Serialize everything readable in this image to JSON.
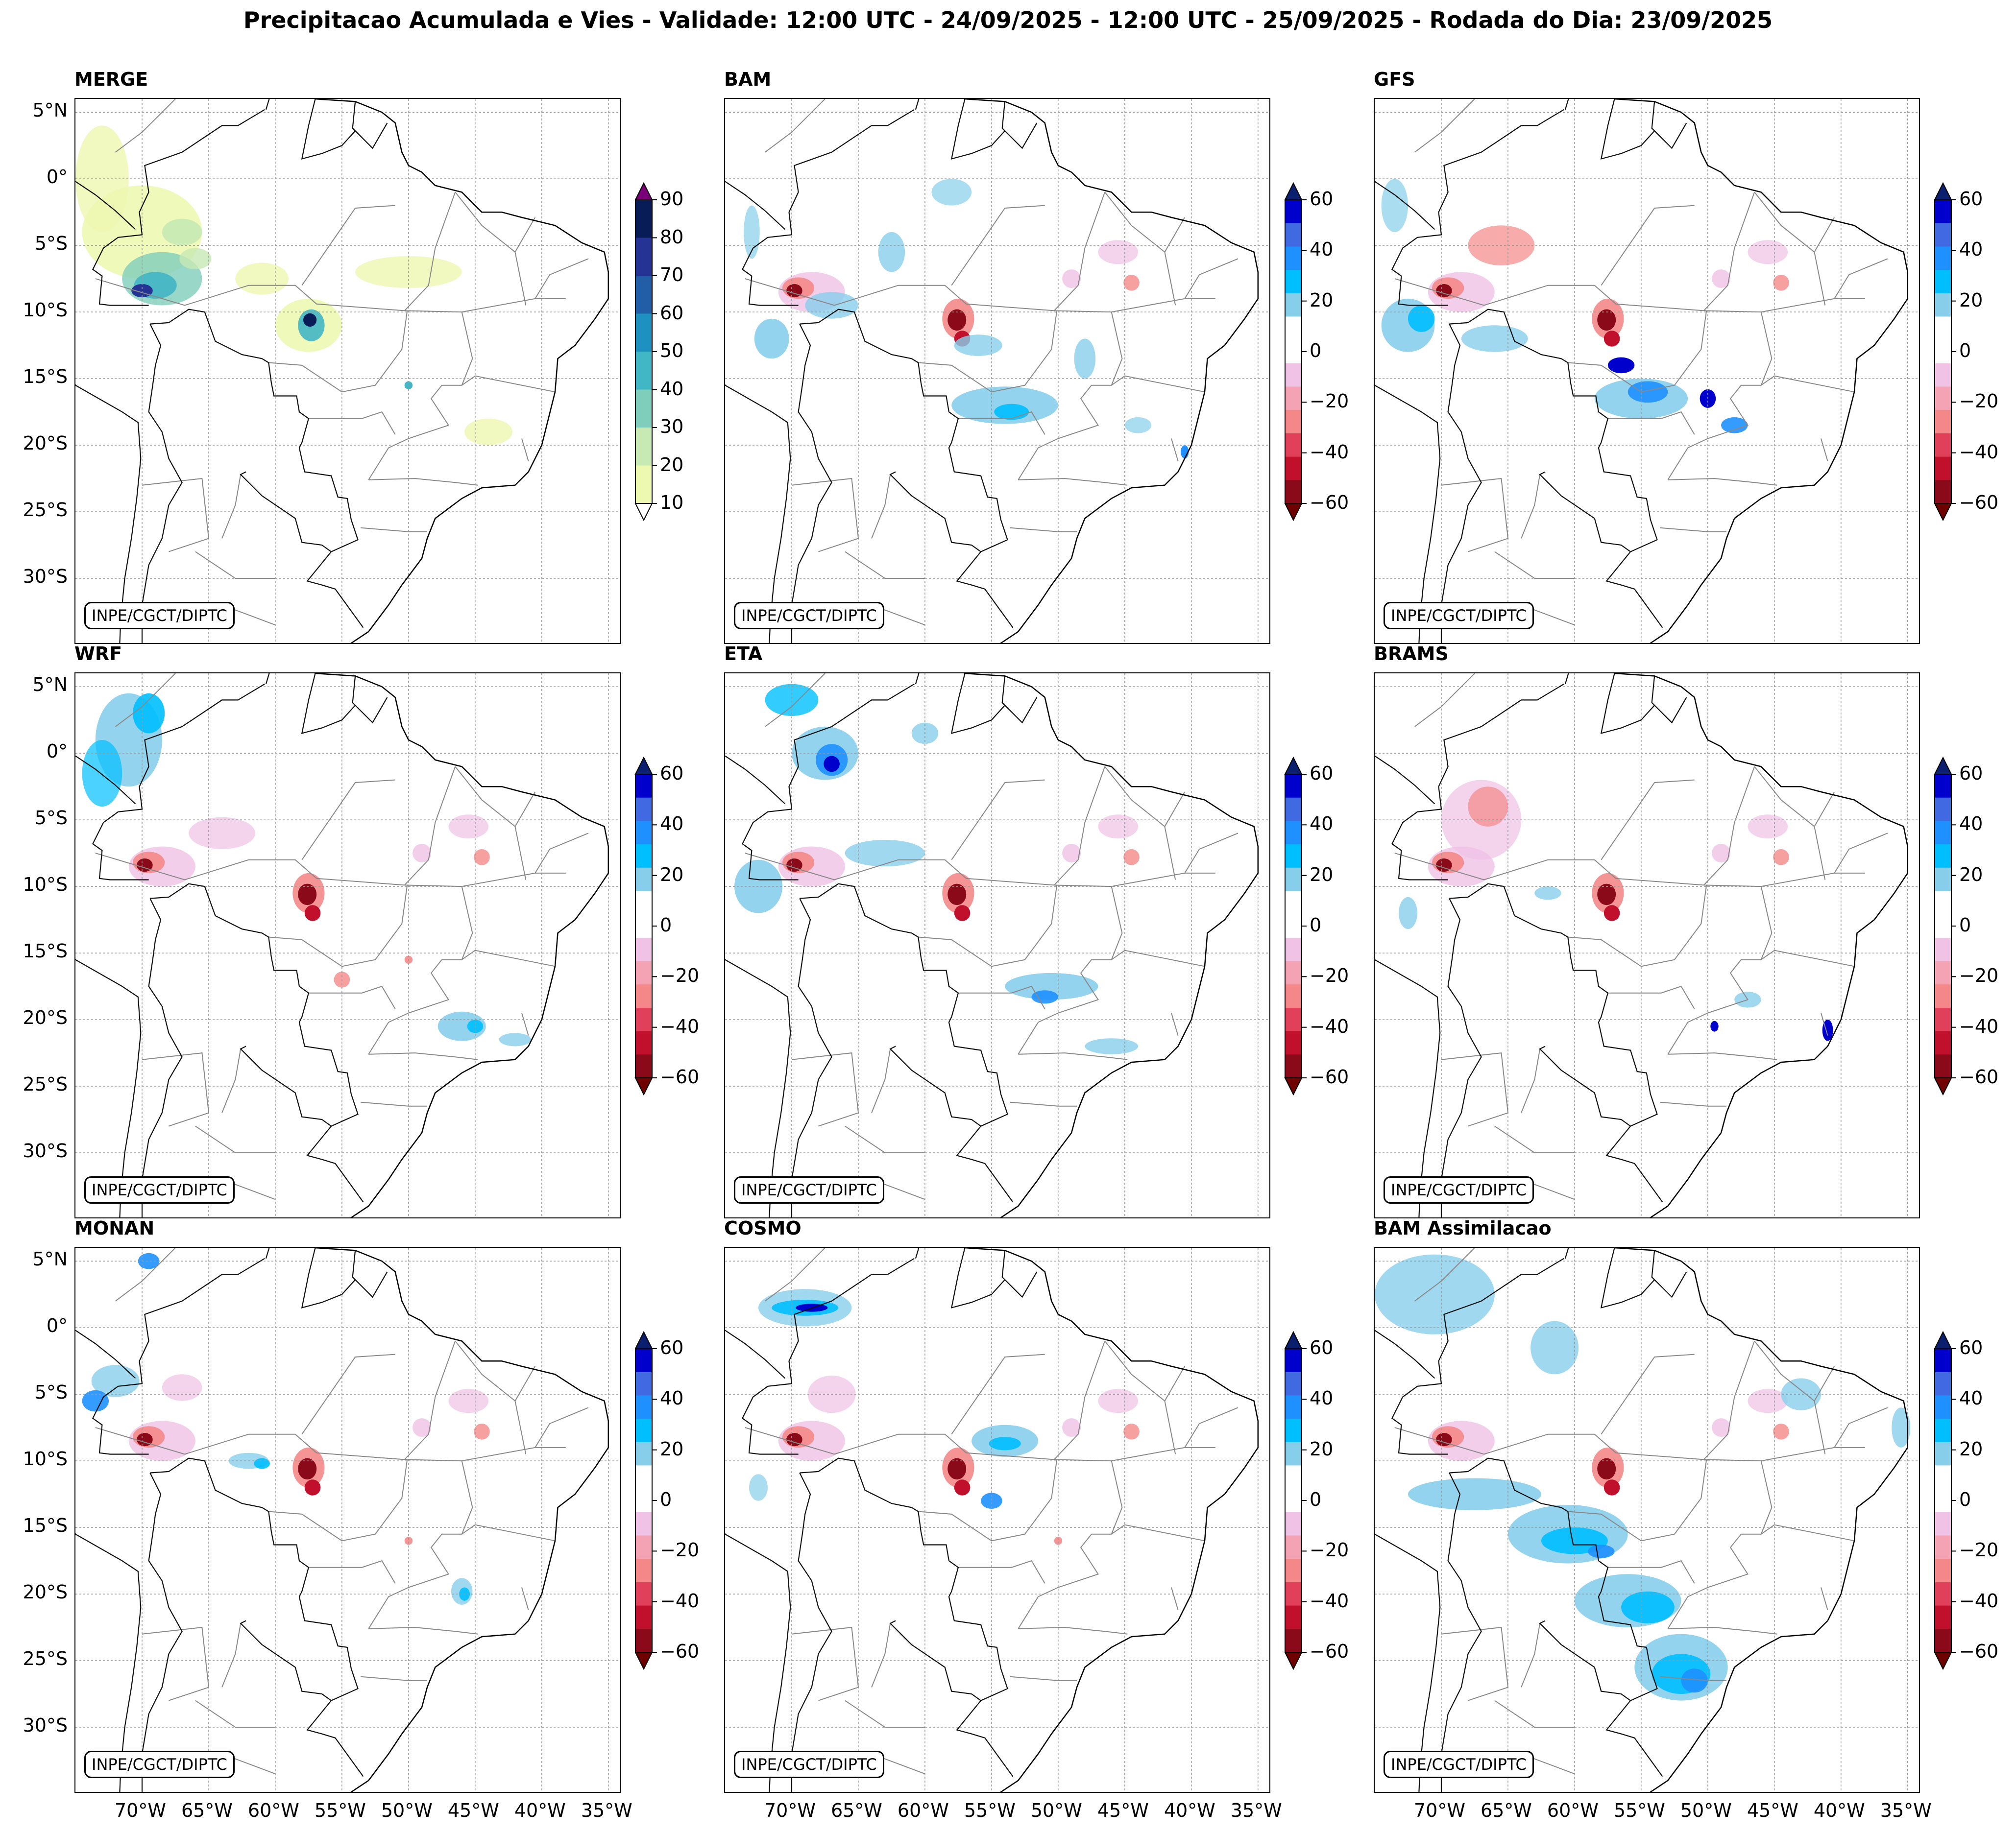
{
  "title": "Precipitacao Acumulada e Vies - Validade: 12:00 UTC - 24/09/2025 - 12:00 UTC - 25/09/2025 - Rodada do Dia: 23/09/2025",
  "credit": "INPE/CGCT/DIPTC",
  "lat_labels": [
    "5°N",
    "0°",
    "5°S",
    "10°S",
    "15°S",
    "20°S",
    "25°S",
    "30°S"
  ],
  "lon_labels": [
    "70°W",
    "65°W",
    "60°W",
    "55°W",
    "50°W",
    "45°W",
    "40°W",
    "35°W"
  ],
  "panels": [
    {
      "name": "MERGE",
      "colorbar": "precip"
    },
    {
      "name": "BAM",
      "colorbar": "bias"
    },
    {
      "name": "GFS",
      "colorbar": "bias"
    },
    {
      "name": "WRF",
      "colorbar": "bias"
    },
    {
      "name": "ETA",
      "colorbar": "bias"
    },
    {
      "name": "BRAMS",
      "colorbar": "bias"
    },
    {
      "name": "MONAN",
      "colorbar": "bias"
    },
    {
      "name": "COSMO",
      "colorbar": "bias"
    },
    {
      "name": "BAM Assimilacao",
      "colorbar": "bias"
    }
  ],
  "colorbars": {
    "precip": {
      "ticks": [
        "90",
        "80",
        "70",
        "60",
        "50",
        "40",
        "30",
        "20",
        "10"
      ],
      "colors": [
        "#edf8b1",
        "#c7e9b4",
        "#7fcdbb",
        "#41b6c4",
        "#1d91c0",
        "#225ea8",
        "#253494",
        "#081d58"
      ],
      "over": "#7a0177",
      "under": "#ffffff"
    },
    "bias": {
      "ticks": [
        "60",
        "40",
        "20",
        "0",
        "−20",
        "−40",
        "−60"
      ],
      "colors": [
        "#8b0a1a",
        "#c0102c",
        "#e0405a",
        "#f48888",
        "#f3a3b3",
        "#f0c2e6",
        "#ffffff",
        "#ffffff",
        "#87ceeb",
        "#00bfff",
        "#1e90ff",
        "#4169e1",
        "#0000cd"
      ],
      "over": "#0a1f6e",
      "under": "#6e0000"
    }
  }
}
